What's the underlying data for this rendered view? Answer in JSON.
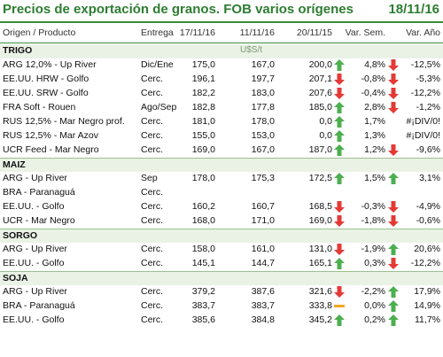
{
  "title": "Precios de exportación de granos. FOB varios orígenes",
  "date": "18/11/16",
  "headers": {
    "origin": "Origen / Producto",
    "delivery": "Entrega",
    "d1": "17/11/16",
    "d2": "11/11/16",
    "d3": "20/11/15",
    "var_week": "Var. Sem.",
    "var_year": "Var. Año"
  },
  "unit": "U$S/t",
  "colors": {
    "up": "#4caf50",
    "down": "#e53935",
    "flat": "#f5a623",
    "accent": "#2e7d32"
  },
  "sections": [
    {
      "name": "TRIGO",
      "rows": [
        {
          "name": "ARG 12,0% - Up River",
          "delivery": "Dic/Ene",
          "d1": "175,0",
          "d2": "167,0",
          "d3": "200,0",
          "arrow1": "up",
          "var_week": "4,8%",
          "arrow2": "down",
          "var_year": "-12,5%"
        },
        {
          "name": "EE.UU. HRW - Golfo",
          "delivery": "Cerc.",
          "d1": "196,1",
          "d2": "197,7",
          "d3": "207,1",
          "arrow1": "down",
          "var_week": "-0,8%",
          "arrow2": "down",
          "var_year": "-5,3%"
        },
        {
          "name": "EE.UU. SRW - Golfo",
          "delivery": "Cerc.",
          "d1": "182,2",
          "d2": "183,0",
          "d3": "207,6",
          "arrow1": "down",
          "var_week": "-0,4%",
          "arrow2": "down",
          "var_year": "-12,2%"
        },
        {
          "name": "FRA Soft - Rouen",
          "delivery": "Ago/Sep",
          "d1": "182,8",
          "d2": "177,8",
          "d3": "185,0",
          "arrow1": "up",
          "var_week": "2,8%",
          "arrow2": "down",
          "var_year": "-1,2%"
        },
        {
          "name": "RUS 12,5% - Mar Negro prof.",
          "delivery": "Cerc.",
          "d1": "181,0",
          "d2": "178,0",
          "d3": "0,0",
          "arrow1": "up",
          "var_week": "1,7%",
          "arrow2": "",
          "var_year": "#¡DIV/0!"
        },
        {
          "name": "RUS 12,5% - Mar Azov",
          "delivery": "Cerc.",
          "d1": "155,0",
          "d2": "153,0",
          "d3": "0,0",
          "arrow1": "up",
          "var_week": "1,3%",
          "arrow2": "",
          "var_year": "#¡DIV/0!"
        },
        {
          "name": "UCR Feed - Mar Negro",
          "delivery": "Cerc.",
          "d1": "169,0",
          "d2": "167,0",
          "d3": "187,0",
          "arrow1": "up",
          "var_week": "1,2%",
          "arrow2": "down",
          "var_year": "-9,6%"
        }
      ]
    },
    {
      "name": "MAIZ",
      "rows": [
        {
          "name": "ARG - Up River",
          "delivery": "Sep",
          "d1": "178,0",
          "d2": "175,3",
          "d3": "172,5",
          "arrow1": "up",
          "var_week": "1,5%",
          "arrow2": "up",
          "var_year": "3,1%"
        },
        {
          "name": "BRA - Paranaguá",
          "delivery": "Cerc.",
          "d1": "",
          "d2": "",
          "d3": "",
          "arrow1": "",
          "var_week": "",
          "arrow2": "",
          "var_year": ""
        },
        {
          "name": "EE.UU. - Golfo",
          "delivery": "Cerc.",
          "d1": "160,2",
          "d2": "160,7",
          "d3": "168,5",
          "arrow1": "down",
          "var_week": "-0,3%",
          "arrow2": "down",
          "var_year": "-4,9%"
        },
        {
          "name": "UCR - Mar Negro",
          "delivery": "Cerc.",
          "d1": "168,0",
          "d2": "171,0",
          "d3": "169,0",
          "arrow1": "down",
          "var_week": "-1,8%",
          "arrow2": "down",
          "var_year": "-0,6%"
        }
      ]
    },
    {
      "name": "SORGO",
      "rows": [
        {
          "name": "ARG - Up River",
          "delivery": "Cerc.",
          "d1": "158,0",
          "d2": "161,0",
          "d3": "131,0",
          "arrow1": "down",
          "var_week": "-1,9%",
          "arrow2": "up",
          "var_year": "20,6%"
        },
        {
          "name": "EE.UU. - Golfo",
          "delivery": "Cerc.",
          "d1": "145,1",
          "d2": "144,7",
          "d3": "165,1",
          "arrow1": "up",
          "var_week": "0,3%",
          "arrow2": "down",
          "var_year": "-12,2%"
        }
      ]
    },
    {
      "name": "SOJA",
      "rows": [
        {
          "name": "ARG - Up River",
          "delivery": "Cerc.",
          "d1": "379,2",
          "d2": "387,6",
          "d3": "321,6",
          "arrow1": "down",
          "var_week": "-2,2%",
          "arrow2": "up",
          "var_year": "17,9%"
        },
        {
          "name": "BRA - Paranaguá",
          "delivery": "Cerc.",
          "d1": "383,7",
          "d2": "383,7",
          "d3": "333,8",
          "arrow1": "flat",
          "var_week": "0,0%",
          "arrow2": "up",
          "var_year": "14,9%"
        },
        {
          "name": "EE.UU. - Golfo",
          "delivery": "Cerc.",
          "d1": "385,6",
          "d2": "384,8",
          "d3": "345,2",
          "arrow1": "up",
          "var_week": "0,2%",
          "arrow2": "up",
          "var_year": "11,7%"
        }
      ]
    }
  ]
}
